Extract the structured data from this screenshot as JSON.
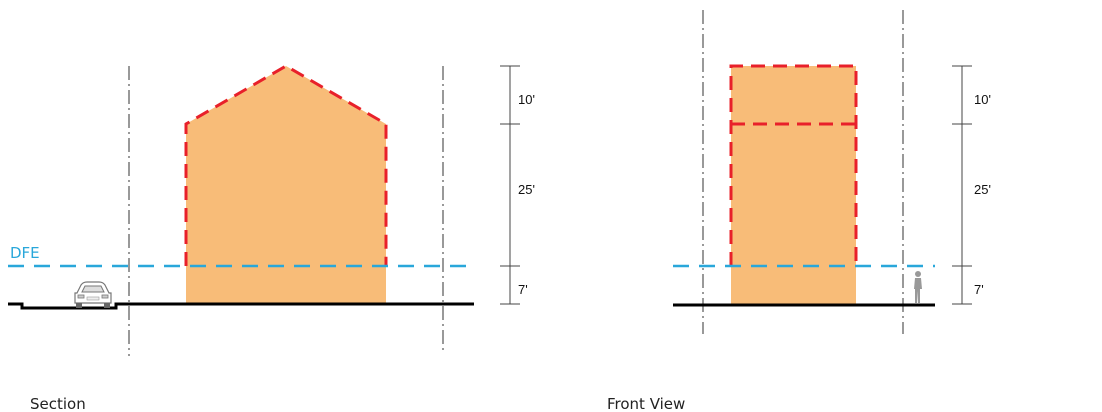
{
  "colors": {
    "building_fill": "#F8BC78",
    "envelope_dash": "#E8202A",
    "dfe_line": "#29A7DA",
    "ground": "#000000",
    "lot_line": "#333333"
  },
  "dfe_label": "DFE",
  "section": {
    "caption": "Section",
    "dims": [
      "10'",
      "25'",
      "7'"
    ]
  },
  "front_view": {
    "caption": "Front View",
    "dims": [
      "10'",
      "25'",
      "7'"
    ]
  },
  "icons": [
    "car-icon",
    "person-icon"
  ]
}
